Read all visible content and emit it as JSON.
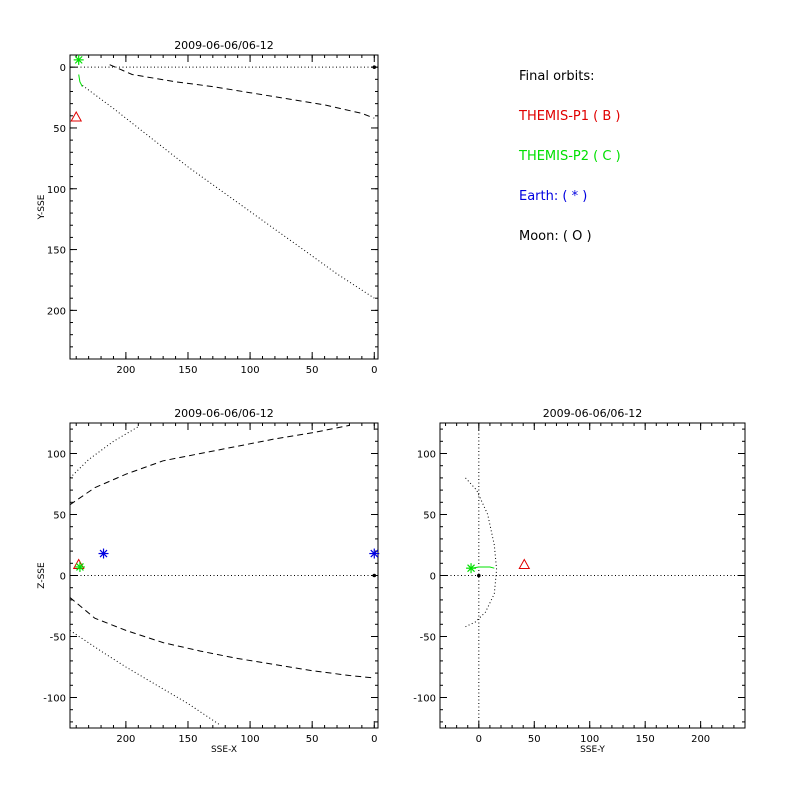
{
  "legend": {
    "title": "Final orbits:",
    "entries": [
      {
        "label": "THEMIS-P1 ( B )",
        "color": "#e00000"
      },
      {
        "label": "THEMIS-P2 ( C )",
        "color": "#00e000"
      },
      {
        "label": "Earth: ( * )",
        "color": "#0000e0"
      },
      {
        "label": "Moon: ( O )",
        "color": "#000000"
      }
    ]
  },
  "chart_data": [
    {
      "id": "xy",
      "type": "scatter",
      "title": "2009-06-06/06-12",
      "xlabel": "",
      "ylabel": "Y-SSE",
      "xlim": [
        245,
        -3
      ],
      "ylim": [
        240,
        -10
      ],
      "xticks": [
        200,
        150,
        100,
        50,
        0
      ],
      "yticks": [
        0,
        50,
        100,
        150,
        200
      ],
      "reference_lines": [
        {
          "axis": "y",
          "value": 0
        }
      ],
      "curves": [
        {
          "style": "dashed",
          "color": "#000000",
          "points": [
            [
              213,
              -2
            ],
            [
              195,
              6
            ],
            [
              160,
              12
            ],
            [
              130,
              16
            ],
            [
              100,
              21
            ],
            [
              70,
              26
            ],
            [
              40,
              31
            ],
            [
              10,
              38
            ],
            [
              0,
              42
            ]
          ]
        },
        {
          "style": "dotted",
          "color": "#000000",
          "points": [
            [
              235,
              15
            ],
            [
              210,
              34
            ],
            [
              180,
              58
            ],
            [
              150,
              82
            ],
            [
              120,
              104
            ],
            [
              90,
              126
            ],
            [
              60,
              148
            ],
            [
              30,
              170
            ],
            [
              0,
              190
            ]
          ]
        },
        {
          "style": "solid",
          "color": "#00e000",
          "points": [
            [
              238,
              6
            ],
            [
              237,
              12
            ],
            [
              235,
              16
            ]
          ]
        }
      ],
      "markers": [
        {
          "symbol": "asterisk",
          "color": "#00e000",
          "x": 238,
          "y": -6
        },
        {
          "symbol": "triangle",
          "color": "#e00000",
          "x": 240,
          "y": 41
        },
        {
          "symbol": "dot",
          "color": "#000000",
          "x": 0,
          "y": 0
        }
      ]
    },
    {
      "id": "xz",
      "type": "scatter",
      "title": "2009-06-06/06-12",
      "xlabel": "SSE-X",
      "ylabel": "Z-SSE",
      "xlim": [
        245,
        -3
      ],
      "ylim": [
        -125,
        125
      ],
      "xticks": [
        200,
        150,
        100,
        50,
        0
      ],
      "yticks": [
        100,
        50,
        0,
        -50,
        -100
      ],
      "reference_lines": [
        {
          "axis": "y",
          "value": 0
        }
      ],
      "curves": [
        {
          "style": "dashed",
          "color": "#000000",
          "points": [
            [
              245,
              58
            ],
            [
              225,
              72
            ],
            [
              200,
              83
            ],
            [
              170,
              94
            ],
            [
              140,
              100
            ],
            [
              110,
              106
            ],
            [
              80,
              112
            ],
            [
              50,
              117
            ],
            [
              20,
              123
            ]
          ]
        },
        {
          "style": "dotted",
          "color": "#000000",
          "points": [
            [
              245,
              80
            ],
            [
              230,
              95
            ],
            [
              210,
              110
            ],
            [
              190,
              122
            ]
          ]
        },
        {
          "style": "dashed",
          "color": "#000000",
          "points": [
            [
              245,
              -18
            ],
            [
              225,
              -35
            ],
            [
              200,
              -45
            ],
            [
              170,
              -55
            ],
            [
              140,
              -62
            ],
            [
              110,
              -68
            ],
            [
              80,
              -73
            ],
            [
              50,
              -78
            ],
            [
              20,
              -82
            ],
            [
              0,
              -84
            ]
          ]
        },
        {
          "style": "dotted",
          "color": "#000000",
          "points": [
            [
              245,
              -45
            ],
            [
              220,
              -62
            ],
            [
              200,
              -75
            ],
            [
              175,
              -90
            ],
            [
              150,
              -105
            ],
            [
              125,
              -122
            ]
          ]
        }
      ],
      "markers": [
        {
          "symbol": "triangle",
          "color": "#e00000",
          "x": 238,
          "y": 9
        },
        {
          "symbol": "asterisk",
          "color": "#00e000",
          "x": 237,
          "y": 7
        },
        {
          "symbol": "asterisk",
          "color": "#0000e0",
          "x": 218,
          "y": 18
        },
        {
          "symbol": "asterisk",
          "color": "#0000e0",
          "x": 0,
          "y": 18
        },
        {
          "symbol": "dot",
          "color": "#000000",
          "x": 0,
          "y": 0
        }
      ]
    },
    {
      "id": "yz",
      "type": "scatter",
      "title": "2009-06-06/06-12",
      "xlabel": "SSE-Y",
      "ylabel": "",
      "xlim": [
        -35,
        240
      ],
      "ylim": [
        -125,
        125
      ],
      "xticks": [
        0,
        50,
        100,
        150,
        200
      ],
      "yticks": [
        100,
        50,
        0,
        -50,
        -100
      ],
      "reference_lines": [
        {
          "axis": "y",
          "value": 0
        },
        {
          "axis": "x",
          "value": 0
        }
      ],
      "curves": [
        {
          "style": "dotted",
          "color": "#000000",
          "points": [
            [
              -12,
              80
            ],
            [
              -2,
              70
            ],
            [
              8,
              50
            ],
            [
              14,
              25
            ],
            [
              16,
              5
            ],
            [
              14,
              -15
            ],
            [
              6,
              -30
            ],
            [
              -3,
              -38
            ],
            [
              -12,
              -42
            ]
          ]
        },
        {
          "style": "solid",
          "color": "#00e000",
          "points": [
            [
              -7,
              6
            ],
            [
              0,
              7
            ],
            [
              10,
              7
            ],
            [
              14,
              6
            ]
          ]
        }
      ],
      "markers": [
        {
          "symbol": "asterisk",
          "color": "#00e000",
          "x": -7,
          "y": 6
        },
        {
          "symbol": "triangle",
          "color": "#e00000",
          "x": 41,
          "y": 9
        },
        {
          "symbol": "dot",
          "color": "#000000",
          "x": 0,
          "y": 0
        }
      ]
    }
  ]
}
